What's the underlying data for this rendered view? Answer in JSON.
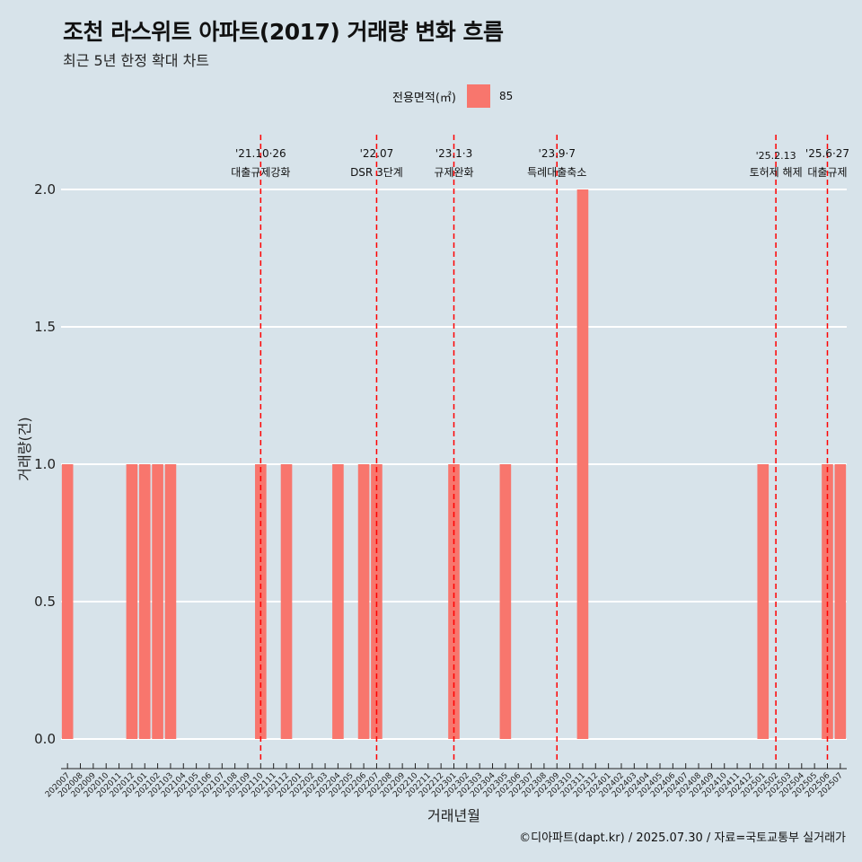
{
  "header": {
    "title": "조천 라스위트 아파트(2017) 거래량 변화 흐름",
    "subtitle": "최근 5년 한정 확대 차트"
  },
  "legend": {
    "title": "전용면적(㎡)",
    "items": [
      {
        "label": "85",
        "color": "#f8766d"
      }
    ]
  },
  "caption": "©디아파트(dapt.kr) / 2025.07.30 / 자료=국토교통부 실거래가",
  "colors": {
    "background": "#d7e3ea",
    "bar": "#f8766d",
    "event_line": "#ff0000",
    "grid": "#ffffff"
  },
  "chart_data": {
    "type": "bar",
    "xlabel": "거래년월",
    "ylabel": "거래량(건)",
    "ylim": [
      0,
      2.2
    ],
    "yticks": [
      "0.0",
      "0.5",
      "1.0",
      "1.5",
      "2.0"
    ],
    "grid": true,
    "legend_position": "top",
    "categories": [
      "202007",
      "202008",
      "202009",
      "202010",
      "202011",
      "202012",
      "202101",
      "202102",
      "202103",
      "202104",
      "202105",
      "202106",
      "202107",
      "202108",
      "202109",
      "202110",
      "202111",
      "202112",
      "202201",
      "202202",
      "202203",
      "202204",
      "202205",
      "202206",
      "202207",
      "202208",
      "202209",
      "202210",
      "202211",
      "202212",
      "202301",
      "202302",
      "202303",
      "202304",
      "202305",
      "202306",
      "202307",
      "202308",
      "202309",
      "202310",
      "202311",
      "202312",
      "202401",
      "202402",
      "202403",
      "202404",
      "202405",
      "202406",
      "202407",
      "202408",
      "202409",
      "202410",
      "202411",
      "202412",
      "202501",
      "202502",
      "202503",
      "202504",
      "202505",
      "202506",
      "202507"
    ],
    "series": [
      {
        "name": "85",
        "values": [
          1,
          0,
          0,
          0,
          0,
          1,
          1,
          1,
          1,
          0,
          0,
          0,
          0,
          0,
          0,
          1,
          0,
          1,
          0,
          0,
          0,
          1,
          0,
          1,
          1,
          0,
          0,
          0,
          0,
          0,
          1,
          0,
          0,
          0,
          1,
          0,
          0,
          0,
          0,
          0,
          2,
          0,
          0,
          0,
          0,
          0,
          0,
          0,
          0,
          0,
          0,
          0,
          0,
          0,
          1,
          0,
          0,
          0,
          0,
          1,
          1
        ]
      }
    ],
    "events": [
      {
        "x": "202110",
        "date": "'21.10·26",
        "label": "대출규제강화"
      },
      {
        "x": "202207",
        "date": "'22.07",
        "label": "DSR 3단계"
      },
      {
        "x": "202301",
        "date": "'23.1·3",
        "label": "규제완화"
      },
      {
        "x": "202309",
        "date": "'23.9·7",
        "label": "특례대출축소"
      },
      {
        "x": "202502",
        "date": "'25.2.13",
        "label": "토허제 해제"
      },
      {
        "x": "202506",
        "date": "'25.6·27",
        "label": "대출규제"
      }
    ]
  }
}
